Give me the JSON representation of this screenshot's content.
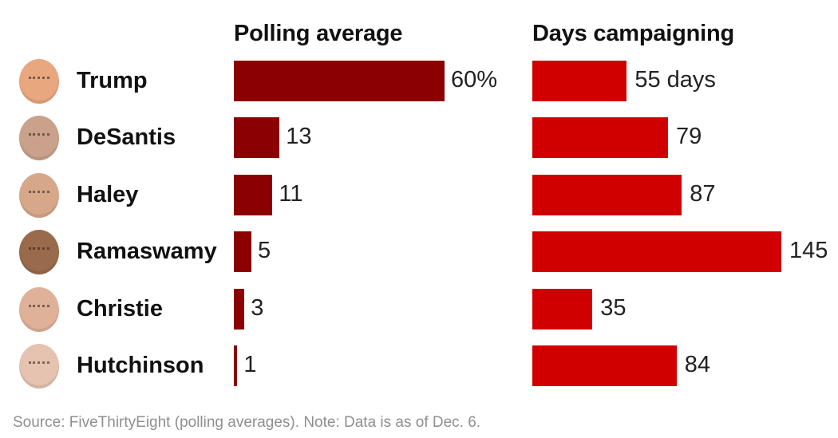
{
  "chart_data": [
    {
      "type": "bar",
      "orientation": "horizontal",
      "title": "Polling average",
      "categories": [
        "Trump",
        "DeSantis",
        "Haley",
        "Ramaswamy",
        "Christie",
        "Hutchinson"
      ],
      "values": [
        60,
        13,
        11,
        5,
        3,
        1
      ],
      "value_labels": [
        "60%",
        "13",
        "11",
        "5",
        "3",
        "1"
      ],
      "unit": "%",
      "xlim": [
        0,
        60
      ],
      "grid": false,
      "color": "#8b0000"
    },
    {
      "type": "bar",
      "orientation": "horizontal",
      "title": "Days campaigning",
      "categories": [
        "Trump",
        "DeSantis",
        "Haley",
        "Ramaswamy",
        "Christie",
        "Hutchinson"
      ],
      "values": [
        55,
        79,
        87,
        145,
        35,
        84
      ],
      "value_labels": [
        "55 days",
        "79",
        "87",
        "145",
        "35",
        "84"
      ],
      "unit": "days",
      "xlim": [
        0,
        145
      ],
      "grid": false,
      "color": "#d10000"
    }
  ],
  "avatar_colors": [
    "#e8a77f",
    "#caa18a",
    "#d6a889",
    "#9a6a4c",
    "#dfb199",
    "#e6c2b0"
  ],
  "footer": {
    "source": "Source: FiveThirtyEight (polling averages). Note: Data is as of Dec. 6."
  }
}
